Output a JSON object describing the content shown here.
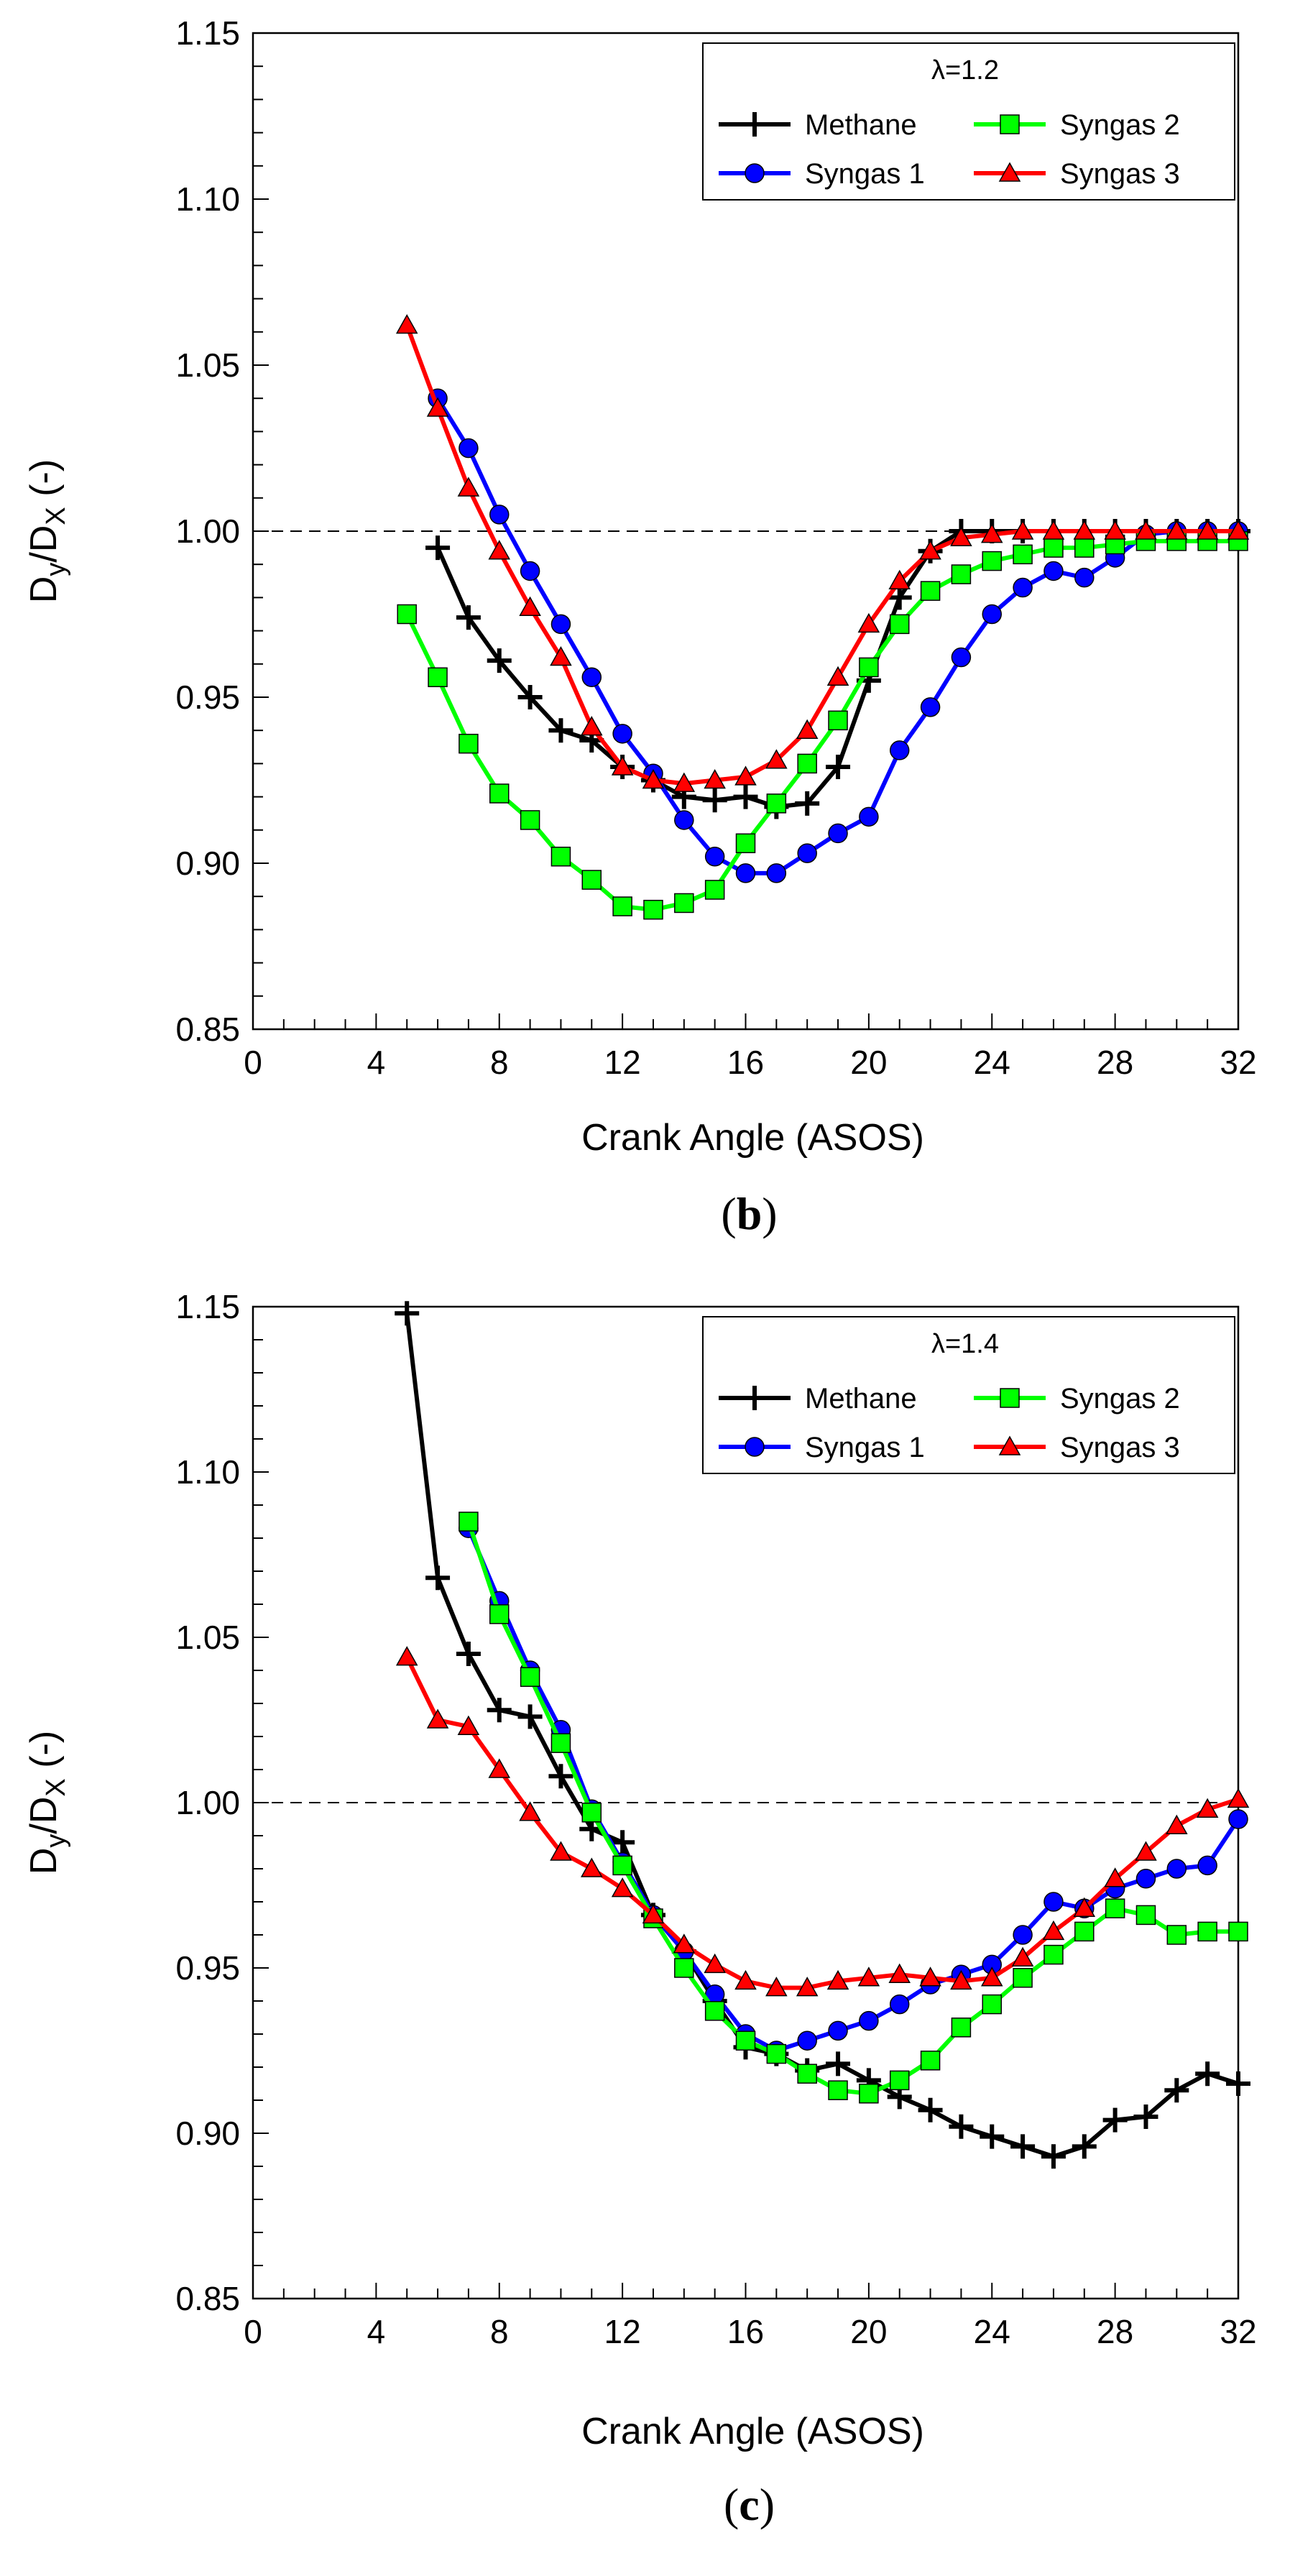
{
  "chart_data": [
    {
      "type": "line",
      "panel_label": "b",
      "title": "λ=1.2",
      "xlabel": "Crank Angle (ASOS)",
      "ylabel_main": "D",
      "ylabel_sub1": "y",
      "ylabel_mid": "/D",
      "ylabel_sub2": "X",
      "ylabel_tail": " (-)",
      "xlim": [
        0,
        32
      ],
      "ylim": [
        0.85,
        1.15
      ],
      "xticks": [
        0,
        4,
        8,
        12,
        16,
        20,
        24,
        28,
        32
      ],
      "xtick_labels": [
        "0",
        "4",
        "8",
        "12",
        "16",
        "20",
        "24",
        "28",
        "32"
      ],
      "yticks": [
        0.85,
        0.9,
        0.95,
        1.0,
        1.05,
        1.1,
        1.15
      ],
      "ytick_labels": [
        "0.85",
        "0.90",
        "0.95",
        "1.00",
        "1.05",
        "1.10",
        "1.15"
      ],
      "reference_line": 1.0,
      "legend_position": "top-right",
      "series": [
        {
          "name": "Methane",
          "color": "#000000",
          "marker": "plus",
          "x": [
            6,
            7,
            8,
            9,
            10,
            11,
            12,
            13,
            14,
            15,
            16,
            17,
            18,
            19,
            20,
            21,
            22,
            23,
            24,
            25,
            26,
            27,
            28,
            29,
            30,
            31,
            32
          ],
          "y": [
            0.995,
            0.974,
            0.961,
            0.95,
            0.94,
            0.937,
            0.929,
            0.925,
            0.92,
            0.919,
            0.92,
            0.917,
            0.918,
            0.929,
            0.955,
            0.98,
            0.994,
            1.0,
            1.0,
            1.0,
            1.0,
            1.0,
            1.0,
            1.0,
            1.0,
            1.0,
            1.0
          ]
        },
        {
          "name": "Syngas 1",
          "color": "#0000ff",
          "marker": "circle",
          "x": [
            6,
            7,
            8,
            9,
            10,
            11,
            12,
            13,
            14,
            15,
            16,
            17,
            18,
            19,
            20,
            21,
            22,
            23,
            24,
            25,
            26,
            27,
            28,
            29,
            30,
            31,
            32
          ],
          "y": [
            1.04,
            1.025,
            1.005,
            0.988,
            0.972,
            0.956,
            0.939,
            0.927,
            0.913,
            0.902,
            0.897,
            0.897,
            0.903,
            0.909,
            0.914,
            0.934,
            0.947,
            0.962,
            0.975,
            0.983,
            0.988,
            0.986,
            0.992,
            0.999,
            1.0,
            1.0,
            1.0
          ]
        },
        {
          "name": "Syngas 2",
          "color": "#00ff00",
          "marker": "square",
          "x": [
            5,
            6,
            7,
            8,
            9,
            10,
            11,
            12,
            13,
            14,
            15,
            16,
            17,
            18,
            19,
            20,
            21,
            22,
            23,
            24,
            25,
            26,
            27,
            28,
            29,
            30,
            31,
            32
          ],
          "y": [
            0.975,
            0.956,
            0.936,
            0.921,
            0.913,
            0.902,
            0.895,
            0.887,
            0.886,
            0.888,
            0.892,
            0.906,
            0.918,
            0.93,
            0.943,
            0.959,
            0.972,
            0.982,
            0.987,
            0.991,
            0.993,
            0.995,
            0.995,
            0.996,
            0.997,
            0.997,
            0.997,
            0.997
          ]
        },
        {
          "name": "Syngas 3",
          "color": "#ff0000",
          "marker": "triangle",
          "x": [
            5,
            6,
            7,
            8,
            9,
            10,
            11,
            12,
            13,
            14,
            15,
            16,
            17,
            18,
            19,
            20,
            21,
            22,
            23,
            24,
            25,
            26,
            27,
            28,
            29,
            30,
            31,
            32
          ],
          "y": [
            1.062,
            1.037,
            1.013,
            0.994,
            0.977,
            0.962,
            0.941,
            0.929,
            0.925,
            0.924,
            0.925,
            0.926,
            0.931,
            0.94,
            0.956,
            0.972,
            0.985,
            0.994,
            0.998,
            0.999,
            1.0,
            1.0,
            1.0,
            1.0,
            1.0,
            1.0,
            1.0,
            1.0
          ]
        }
      ]
    },
    {
      "type": "line",
      "panel_label": "c",
      "title": "λ=1.4",
      "xlabel": "Crank Angle (ASOS)",
      "ylabel_main": "D",
      "ylabel_sub1": "y",
      "ylabel_mid": "/D",
      "ylabel_sub2": "X",
      "ylabel_tail": " (-)",
      "xlim": [
        0,
        32
      ],
      "ylim": [
        0.85,
        1.15
      ],
      "xticks": [
        0,
        4,
        8,
        12,
        16,
        20,
        24,
        28,
        32
      ],
      "xtick_labels": [
        "0",
        "4",
        "8",
        "12",
        "16",
        "20",
        "24",
        "28",
        "32"
      ],
      "yticks": [
        0.85,
        0.9,
        0.95,
        1.0,
        1.05,
        1.1,
        1.15
      ],
      "ytick_labels": [
        "0.85",
        "0.90",
        "0.95",
        "1.00",
        "1.05",
        "1.10",
        "1.15"
      ],
      "reference_line": 1.0,
      "legend_position": "top-right",
      "series": [
        {
          "name": "Methane",
          "color": "#000000",
          "marker": "plus",
          "x": [
            5,
            6,
            7,
            8,
            9,
            10,
            11,
            12,
            13,
            14,
            15,
            16,
            17,
            18,
            19,
            20,
            21,
            22,
            23,
            24,
            25,
            26,
            27,
            28,
            29,
            30,
            31,
            32
          ],
          "y": [
            1.148,
            1.068,
            1.045,
            1.028,
            1.026,
            1.008,
            0.992,
            0.988,
            0.966,
            0.955,
            0.94,
            0.926,
            0.924,
            0.919,
            0.921,
            0.916,
            0.911,
            0.907,
            0.902,
            0.899,
            0.896,
            0.893,
            0.896,
            0.904,
            0.905,
            0.913,
            0.918,
            0.915
          ]
        },
        {
          "name": "Syngas 1",
          "color": "#0000ff",
          "marker": "circle",
          "x": [
            7,
            8,
            9,
            10,
            11,
            12,
            13,
            14,
            15,
            16,
            17,
            18,
            19,
            20,
            21,
            22,
            23,
            24,
            25,
            26,
            27,
            28,
            29,
            30,
            31,
            32
          ],
          "y": [
            1.083,
            1.061,
            1.04,
            1.022,
            0.998,
            0.982,
            0.966,
            0.955,
            0.942,
            0.93,
            0.925,
            0.928,
            0.931,
            0.934,
            0.939,
            0.945,
            0.948,
            0.951,
            0.96,
            0.97,
            0.968,
            0.974,
            0.977,
            0.98,
            0.981,
            0.995
          ]
        },
        {
          "name": "Syngas 2",
          "color": "#00ff00",
          "marker": "square",
          "x": [
            7,
            8,
            9,
            10,
            11,
            12,
            13,
            14,
            15,
            16,
            17,
            18,
            19,
            20,
            21,
            22,
            23,
            24,
            25,
            26,
            27,
            28,
            29,
            30,
            31,
            32
          ],
          "y": [
            1.085,
            1.057,
            1.038,
            1.018,
            0.997,
            0.981,
            0.965,
            0.95,
            0.937,
            0.928,
            0.924,
            0.918,
            0.913,
            0.912,
            0.916,
            0.922,
            0.932,
            0.939,
            0.947,
            0.954,
            0.961,
            0.968,
            0.966,
            0.96,
            0.961,
            0.961
          ]
        },
        {
          "name": "Syngas 3",
          "color": "#ff0000",
          "marker": "triangle",
          "x": [
            5,
            6,
            7,
            8,
            9,
            10,
            11,
            12,
            13,
            14,
            15,
            16,
            17,
            18,
            19,
            20,
            21,
            22,
            23,
            24,
            25,
            26,
            27,
            28,
            29,
            30,
            31,
            32
          ],
          "y": [
            1.044,
            1.025,
            1.023,
            1.01,
            0.997,
            0.985,
            0.98,
            0.974,
            0.966,
            0.957,
            0.951,
            0.946,
            0.944,
            0.944,
            0.946,
            0.947,
            0.948,
            0.947,
            0.946,
            0.947,
            0.953,
            0.961,
            0.968,
            0.977,
            0.985,
            0.993,
            0.998,
            1.001
          ]
        }
      ]
    }
  ]
}
